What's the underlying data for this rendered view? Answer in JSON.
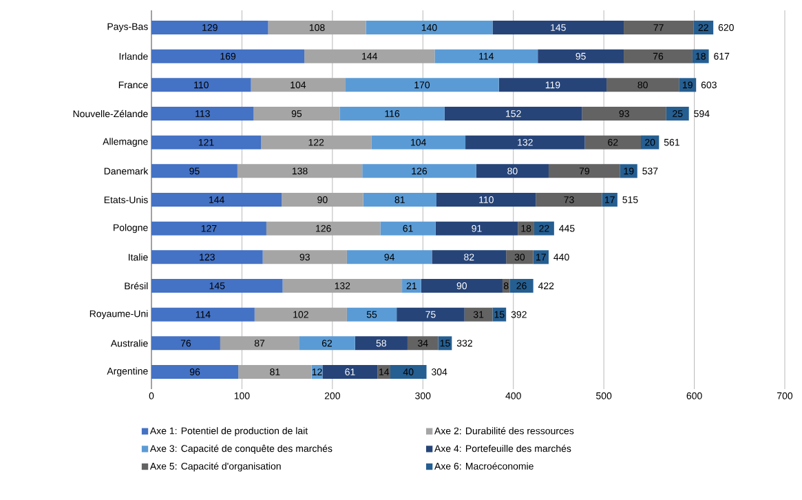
{
  "chart_data": {
    "type": "bar",
    "orientation": "horizontal",
    "stacked": true,
    "data_labels": true,
    "grid": "x",
    "legend": "bottom",
    "categories": [
      "Pays-Bas",
      "Irlande",
      "France",
      "Nouvelle-Zélande",
      "Allemagne",
      "Danemark",
      "Etats-Unis",
      "Pologne",
      "Italie",
      "Brésil",
      "Royaume-Uni",
      "Australie",
      "Argentine"
    ],
    "xlim": [
      0,
      700
    ],
    "xticks": [
      0,
      100,
      200,
      300,
      400,
      500,
      600,
      700
    ],
    "series": [
      {
        "name": "Axe 1: Potentiel de production de lait",
        "color": "#4472c4",
        "values": [
          129,
          169,
          110,
          113,
          121,
          95,
          144,
          127,
          123,
          145,
          114,
          76,
          96
        ]
      },
      {
        "name": "Axe 2: Durabilité des ressources",
        "color": "#a5a5a5",
        "values": [
          108,
          144,
          104,
          95,
          122,
          138,
          90,
          126,
          93,
          132,
          102,
          87,
          81
        ]
      },
      {
        "name": "Axe 3: Capacité de conquête des marchés",
        "color": "#5b9bd5",
        "values": [
          140,
          114,
          170,
          116,
          104,
          126,
          81,
          61,
          94,
          21,
          55,
          62,
          12
        ]
      },
      {
        "name": "Axe 4: Portefeuille des marchés",
        "color": "#264478",
        "values": [
          145,
          95,
          119,
          152,
          132,
          80,
          110,
          91,
          82,
          90,
          75,
          58,
          61
        ]
      },
      {
        "name": "Axe 5: Capacité d'organisation",
        "color": "#636363",
        "values": [
          77,
          76,
          80,
          93,
          62,
          79,
          73,
          18,
          30,
          8,
          31,
          34,
          14
        ]
      },
      {
        "name": "Axe 6: Macroéconomie",
        "color": "#255e91",
        "values": [
          22,
          18,
          19,
          25,
          20,
          19,
          17,
          22,
          17,
          26,
          15,
          15,
          40
        ]
      }
    ],
    "totals": [
      "620",
      "617",
      "603",
      "594",
      "561",
      "537",
      "515",
      "445",
      "440",
      "422",
      "392",
      "332",
      "304"
    ]
  }
}
